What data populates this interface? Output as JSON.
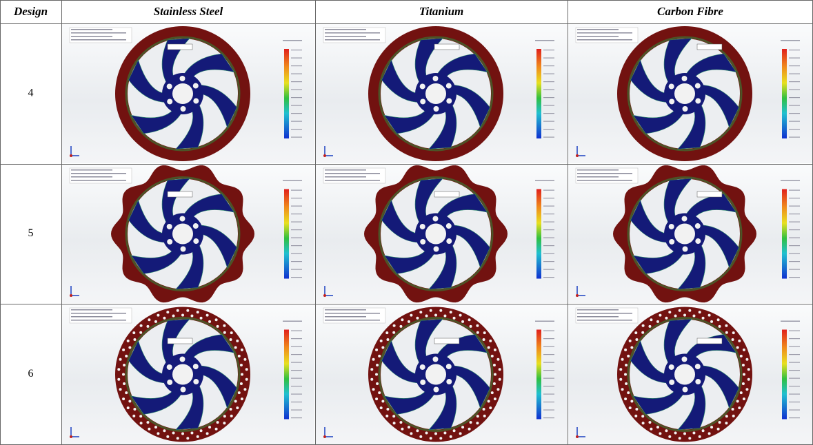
{
  "table": {
    "header": [
      "Design",
      "Stainless Steel",
      "Titanium",
      "Carbon Fibre"
    ],
    "rows": [
      "4",
      "5",
      "6"
    ]
  }
}
